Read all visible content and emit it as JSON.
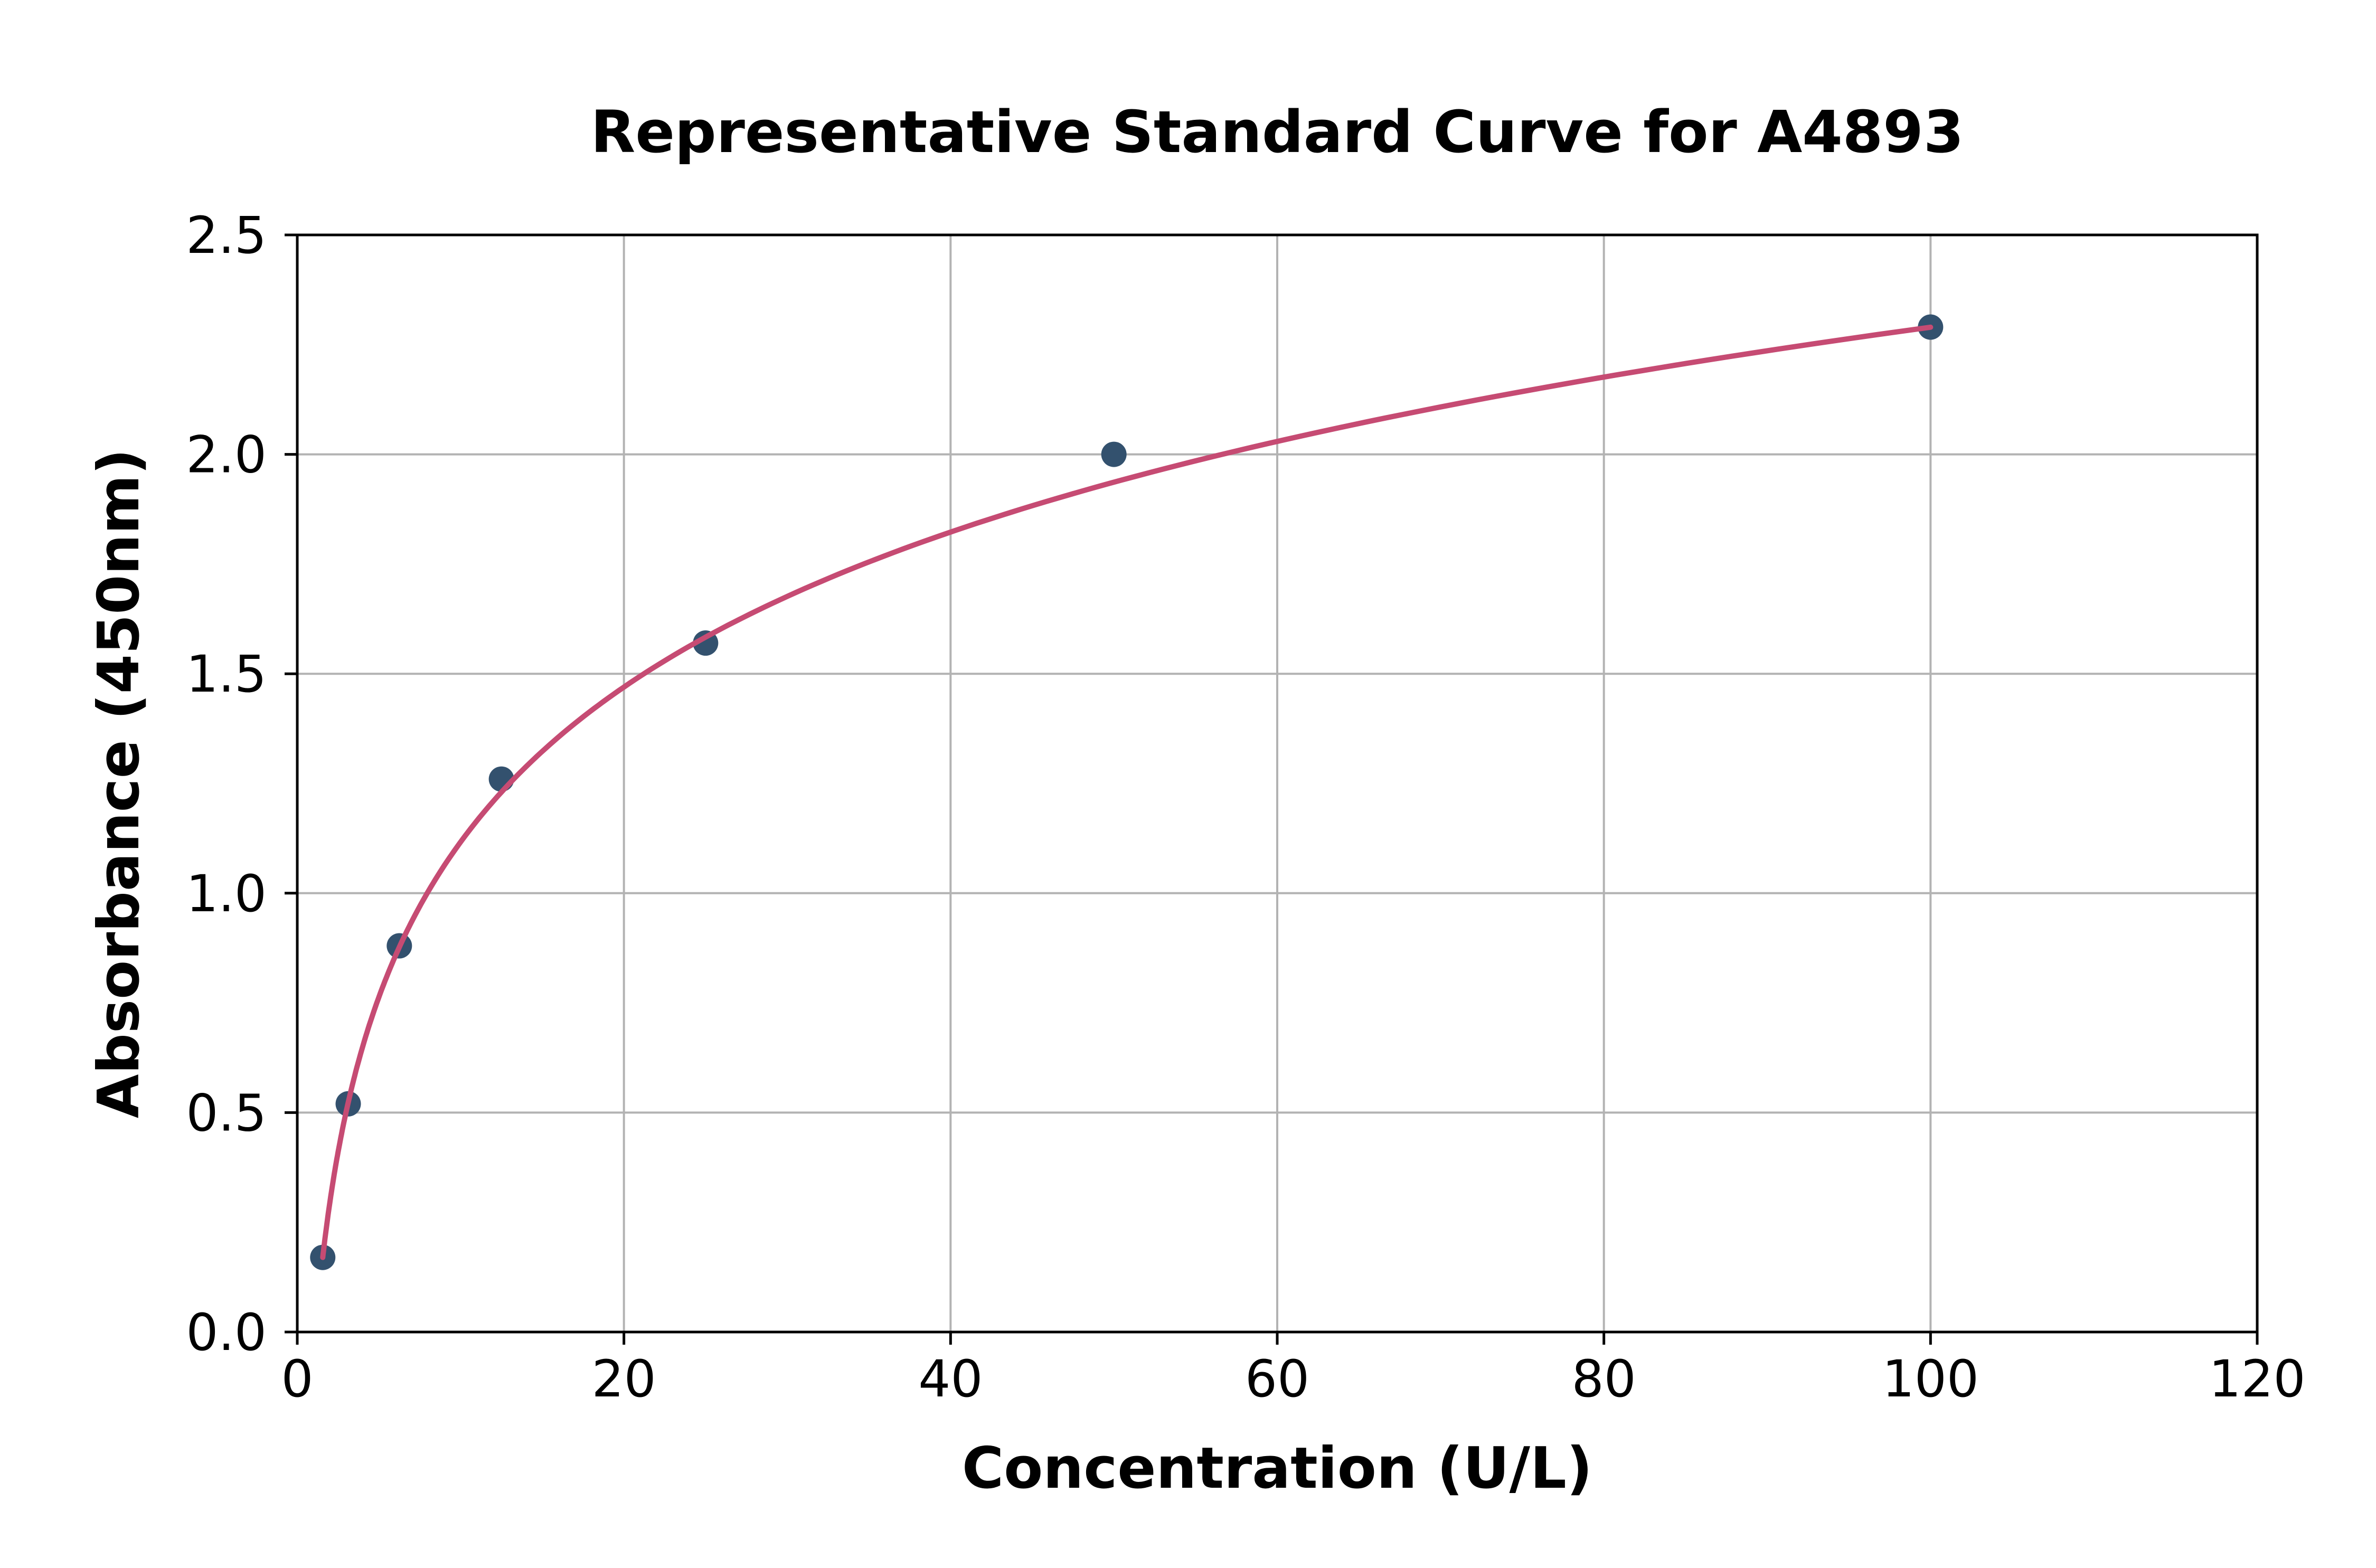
{
  "chart_data": {
    "type": "scatter",
    "title": "Representative Standard Curve for A4893",
    "xlabel": "Concentration (U/L)",
    "ylabel": "Absorbance (450nm)",
    "xlim": [
      0,
      120
    ],
    "ylim": [
      0,
      2.5
    ],
    "x_ticks": [
      0,
      20,
      40,
      60,
      80,
      100,
      120
    ],
    "x_tick_labels": [
      "0",
      "20",
      "40",
      "60",
      "80",
      "100",
      "120"
    ],
    "y_ticks": [
      0,
      0.5,
      1.0,
      1.5,
      2.0,
      2.5
    ],
    "y_tick_labels": [
      "0.0",
      "0.5",
      "1.0",
      "1.5",
      "2.0",
      "2.5"
    ],
    "grid": true,
    "legend_position": "none",
    "series": [
      {
        "name": "standard-points",
        "kind": "scatter",
        "x": [
          1.56,
          3.12,
          6.25,
          12.5,
          25,
          50,
          100
        ],
        "y": [
          0.17,
          0.52,
          0.88,
          1.26,
          1.57,
          2.0,
          2.29
        ]
      },
      {
        "name": "fit-curve",
        "kind": "line",
        "fit": {
          "model": "logarithmic",
          "a": 0.5095,
          "b": -0.0566,
          "x_start": 1.56,
          "x_end": 100
        }
      }
    ],
    "colors": {
      "marker": "#33516e",
      "curve": "#c64b73",
      "grid": "#b3b3b3",
      "axis": "#000000",
      "background": "#ffffff"
    }
  }
}
